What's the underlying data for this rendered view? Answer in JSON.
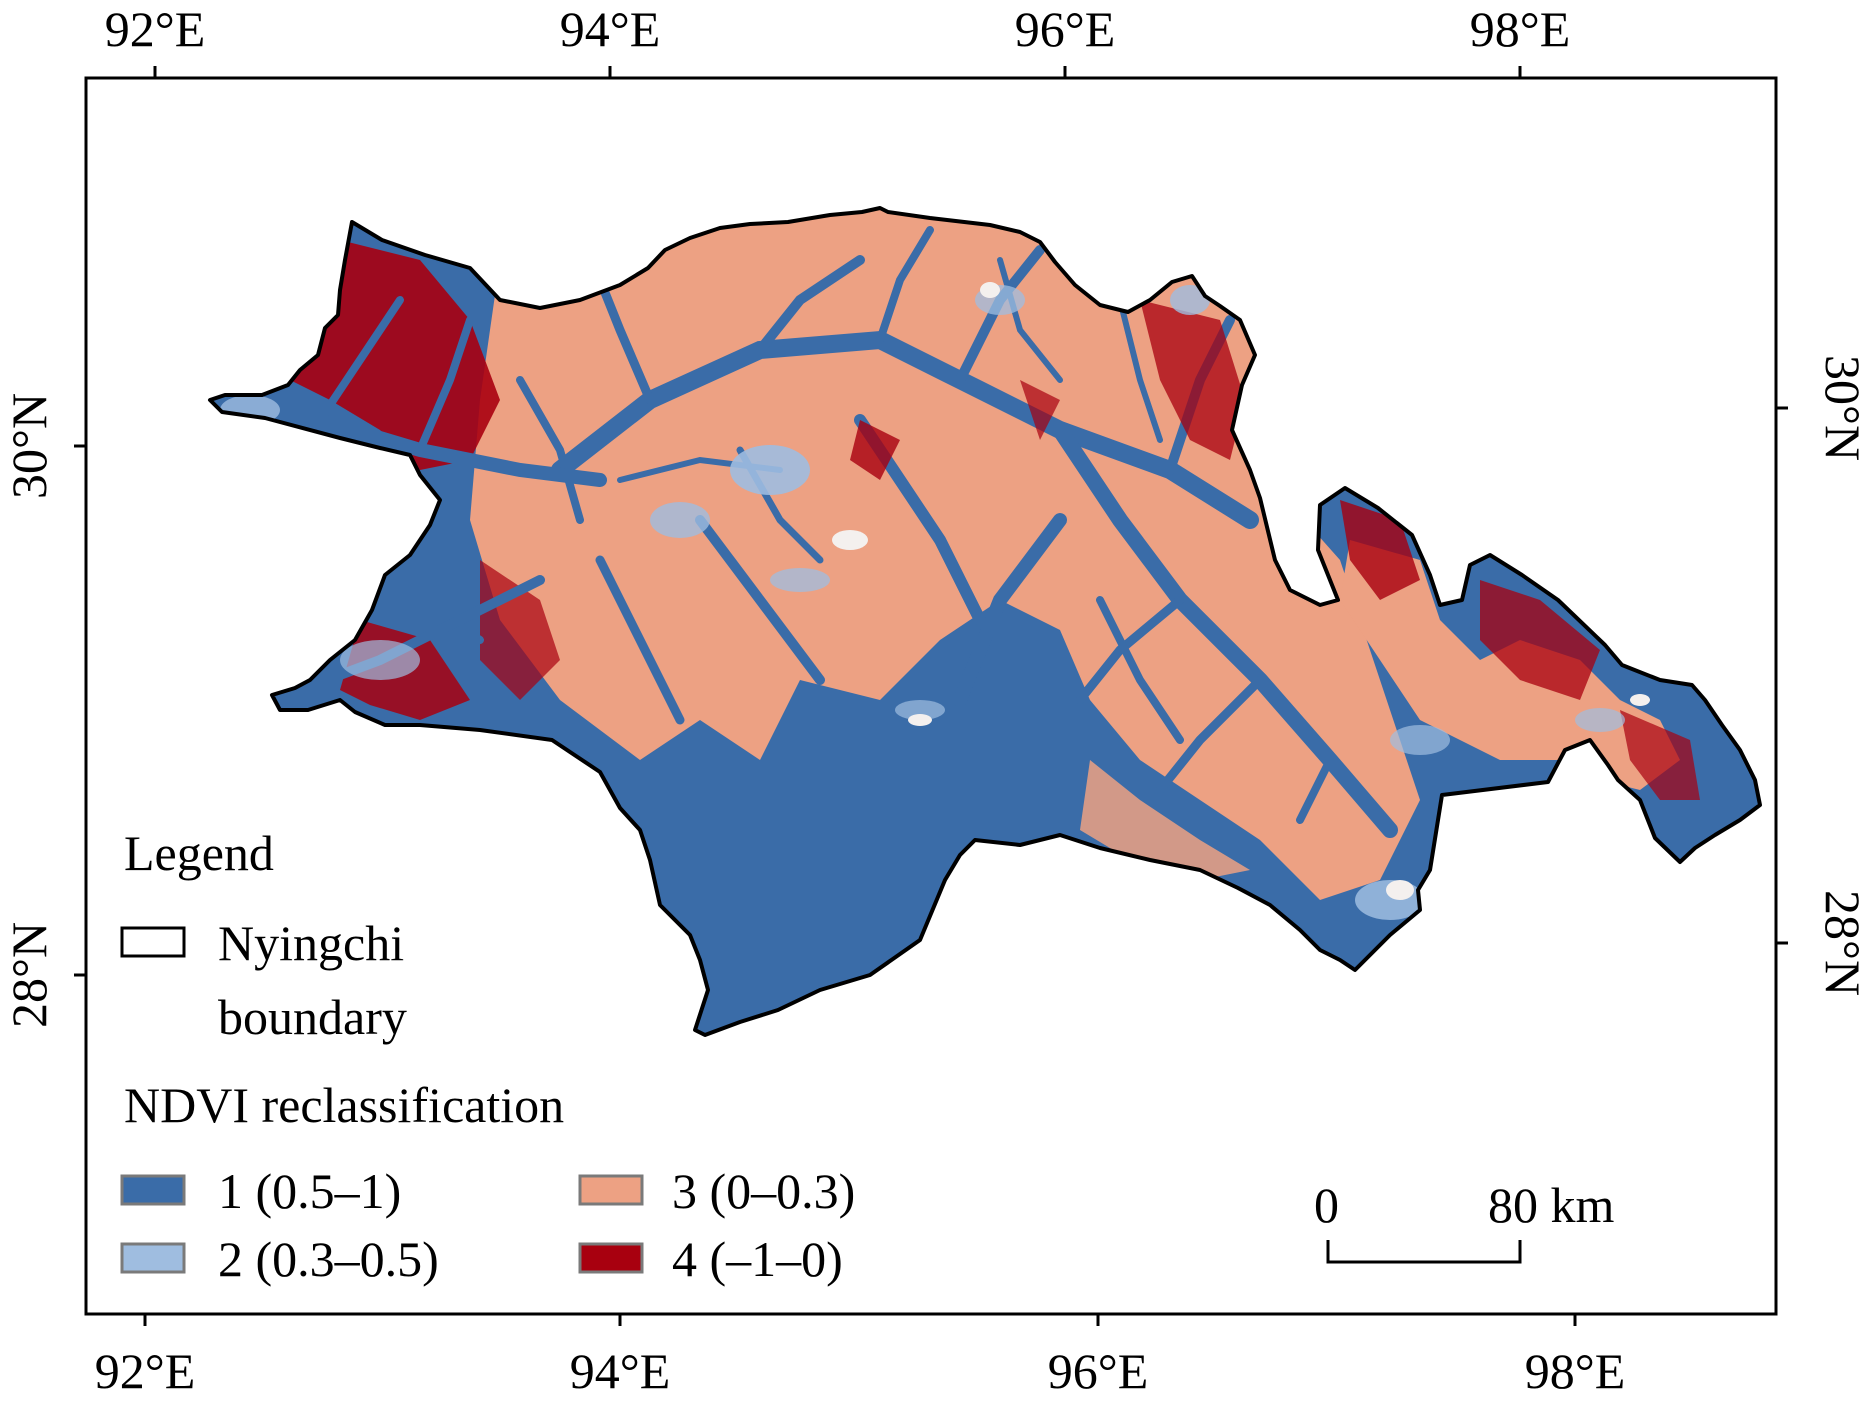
{
  "map": {
    "top_lon_labels": [
      "92°E",
      "94°E",
      "96°E",
      "98°E"
    ],
    "bottom_lon_labels": [
      "92°E",
      "94°E",
      "96°E",
      "98°E"
    ],
    "left_lat_labels": [
      "30°N",
      "28°N"
    ],
    "right_lat_labels": [
      "30°N",
      "28°N"
    ]
  },
  "legend": {
    "title": "Legend",
    "boundary_label_line1": "Nyingchi",
    "boundary_label_line2": "boundary",
    "ndvi_title": "NDVI reclassification",
    "classes": [
      {
        "label": "1 (0.5–1)",
        "color": "#3a6ca8"
      },
      {
        "label": "2 (0.3–0.5)",
        "color": "#9fbde0"
      },
      {
        "label": "3 (0–0.3)",
        "color": "#eda183"
      },
      {
        "label": "4 (–1–0)",
        "color": "#a8000f"
      }
    ]
  },
  "scale_bar": {
    "start_label": "0",
    "end_label": "80 km"
  }
}
